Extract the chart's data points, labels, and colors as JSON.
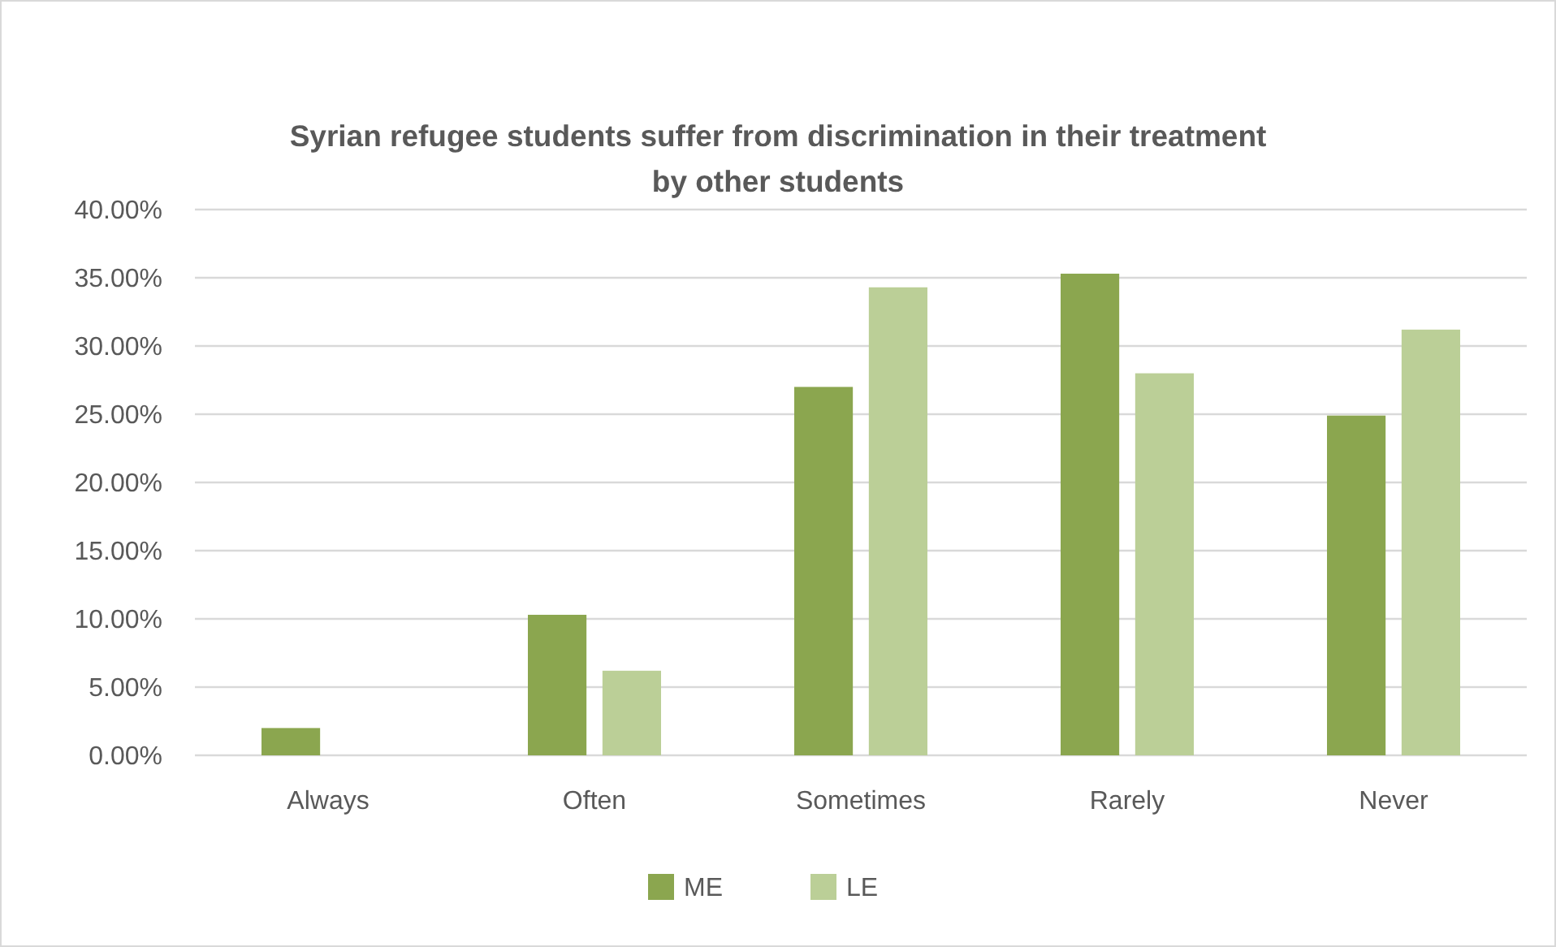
{
  "chart_data": {
    "type": "bar",
    "title": "Syrian refugee students suffer from discrimination in their treatment by other students",
    "categories": [
      "Always",
      "Often",
      "Sometimes",
      "Rarely",
      "Never"
    ],
    "series": [
      {
        "name": "ME",
        "color": "#8ba64f",
        "values": [
          2.0,
          10.3,
          27.0,
          35.3,
          24.9
        ]
      },
      {
        "name": "LE",
        "color": "#bbcf97",
        "values": [
          0,
          6.2,
          34.3,
          28.0,
          31.2
        ]
      }
    ],
    "ylim": [
      0,
      40
    ],
    "yticks": [
      {
        "value": 0,
        "label": "0.00%"
      },
      {
        "value": 5,
        "label": "5.00%"
      },
      {
        "value": 10,
        "label": "10.00%"
      },
      {
        "value": 15,
        "label": "15.00%"
      },
      {
        "value": 20,
        "label": "20.00%"
      },
      {
        "value": 25,
        "label": "25.00%"
      },
      {
        "value": 30,
        "label": "30.00%"
      },
      {
        "value": 35,
        "label": "35.00%"
      },
      {
        "value": 40,
        "label": "40.00%"
      }
    ],
    "grid": "y",
    "legend": "bottom"
  }
}
